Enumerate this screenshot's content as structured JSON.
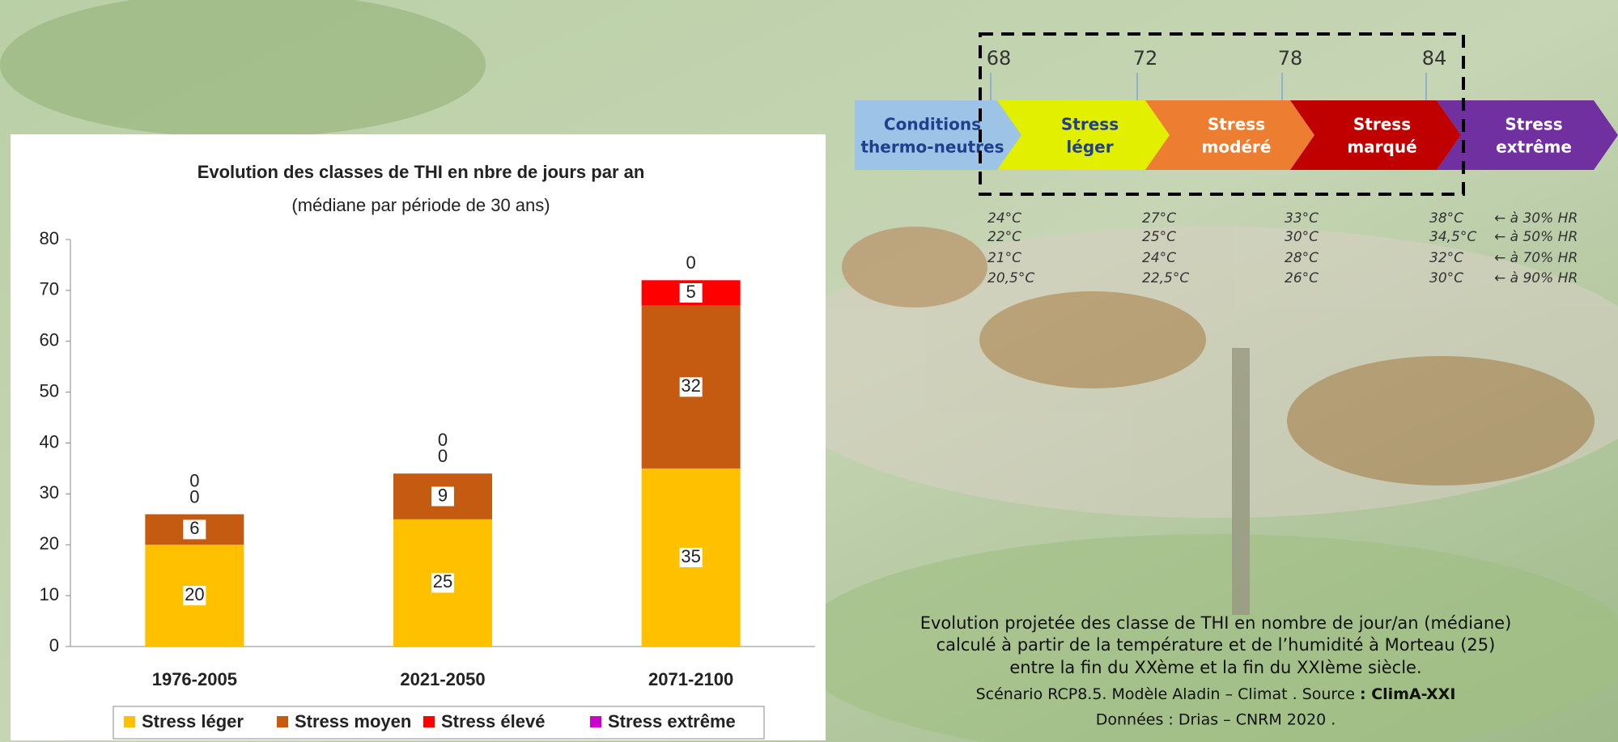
{
  "chart_data": {
    "type": "stacked-bar",
    "title": "Evolution des classes de THI en nbre de jours par an",
    "subtitle": "(médiane par période de 30 ans)",
    "categories": [
      "1976-2005",
      "2021-2050",
      "2071-2100"
    ],
    "series": [
      {
        "name": "Stress léger",
        "color": "#ffc000",
        "values": [
          20,
          25,
          35
        ]
      },
      {
        "name": "Stress moyen",
        "color": "#c55a11",
        "values": [
          6,
          9,
          32
        ]
      },
      {
        "name": "Stress élevé",
        "color": "#ff0000",
        "values": [
          0,
          0,
          5
        ]
      },
      {
        "name": "Stress extrême",
        "color": "#cc00cc",
        "values": [
          0,
          0,
          0
        ]
      }
    ],
    "ylim": [
      0,
      80
    ],
    "yticks": [
      0,
      10,
      20,
      30,
      40,
      50,
      60,
      70,
      80
    ],
    "legend": "bottom"
  },
  "thi_scale": {
    "thresholds": [
      "68",
      "72",
      "78",
      "84"
    ],
    "stages": [
      {
        "lines": [
          "Conditions",
          "thermo-neutres"
        ],
        "color": "#9dc3e6"
      },
      {
        "lines": [
          "Stress",
          "léger"
        ],
        "color": "#e2f000"
      },
      {
        "lines": [
          "Stress",
          "modéré"
        ],
        "color": "#ed7d31"
      },
      {
        "lines": [
          "Stress",
          "marqué"
        ],
        "color": "#c00000"
      },
      {
        "lines": [
          "Stress",
          "extrême"
        ],
        "color": "#7030a0"
      }
    ],
    "temperature_rows": [
      {
        "cells": [
          "24°C",
          "27°C",
          "33°C",
          "38°C"
        ],
        "humidity": "← à 30% HR"
      },
      {
        "cells": [
          "22°C",
          "25°C",
          "30°C",
          "34,5°C"
        ],
        "humidity": "← à 50% HR"
      },
      {
        "cells": [
          "21°C",
          "24°C",
          "28°C",
          "32°C"
        ],
        "humidity": "← à 70% HR"
      },
      {
        "cells": [
          "20,5°C",
          "22,5°C",
          "26°C",
          "30°C"
        ],
        "humidity": "← à 90% HR"
      }
    ]
  },
  "caption": {
    "lines": [
      "Evolution projetée des classe de THI en nombre de jour/an (médiane)",
      "calculé à partir de la température et de l’humidité à Morteau (25)",
      "entre la fin du XXème et la fin du XXIème siècle."
    ],
    "source_prefix": "Scénario RCP8.5. Modèle Aladin – Climat . Source ",
    "source_name": ": ClimA-XXI",
    "data_line": "Données : Drias – CNRM 2020 ."
  }
}
